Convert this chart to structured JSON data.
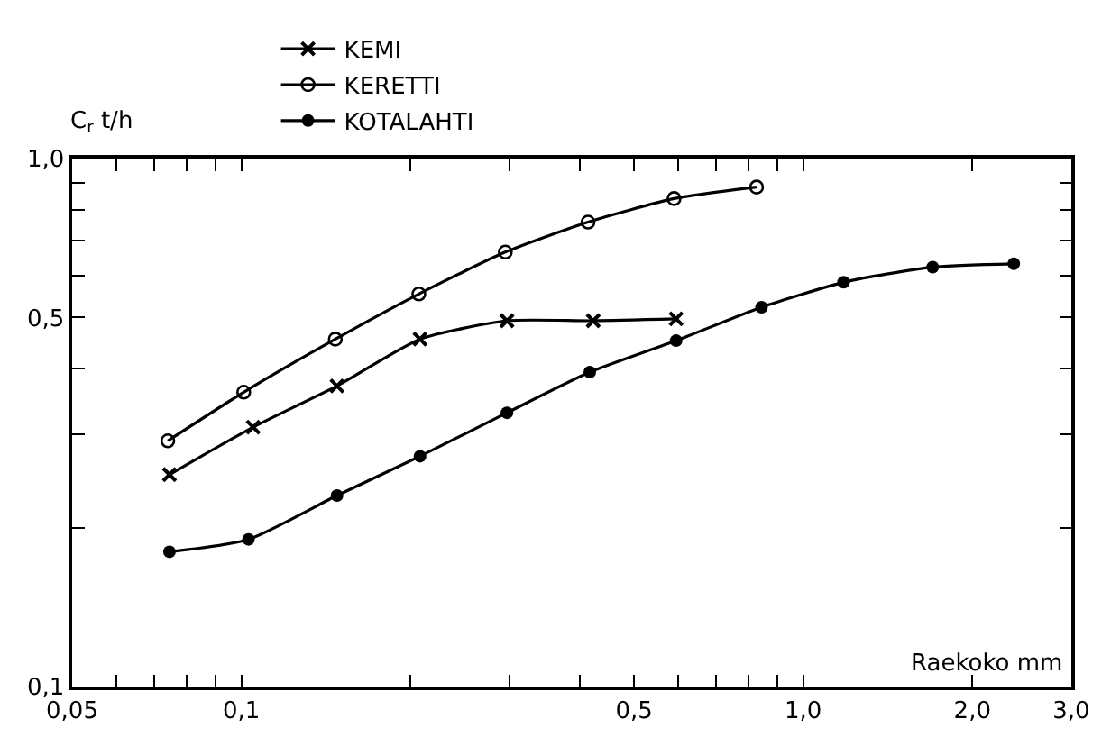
{
  "chart_data": {
    "type": "line",
    "xlabel": "Raekoko mm",
    "ylabel": "C$_{r}$ t/h",
    "log": "xy",
    "legend": "top",
    "xlim": [
      0.05,
      3.0
    ],
    "ylim": [
      0.1,
      1.0
    ],
    "xticks": [
      {
        "value": 0.05,
        "label": "0,05"
      },
      {
        "value": 0.06,
        "label": null
      },
      {
        "value": 0.07,
        "label": null
      },
      {
        "value": 0.08,
        "label": null
      },
      {
        "value": 0.09,
        "label": null
      },
      {
        "value": 0.1,
        "label": "0,1"
      },
      {
        "value": 0.2,
        "label": null
      },
      {
        "value": 0.3,
        "label": null
      },
      {
        "value": 0.4,
        "label": null
      },
      {
        "value": 0.5,
        "label": "0,5"
      },
      {
        "value": 0.6,
        "label": null
      },
      {
        "value": 0.7,
        "label": null
      },
      {
        "value": 0.8,
        "label": null
      },
      {
        "value": 0.9,
        "label": null
      },
      {
        "value": 1.0,
        "label": "1,0"
      },
      {
        "value": 2.0,
        "label": "2,0"
      },
      {
        "value": 3.0,
        "label": "3,0"
      }
    ],
    "yticks": [
      {
        "value": 0.1,
        "label": "0,1"
      },
      {
        "value": 0.2,
        "label": null
      },
      {
        "value": 0.3,
        "label": null
      },
      {
        "value": 0.4,
        "label": null
      },
      {
        "value": 0.5,
        "label": "0,5"
      },
      {
        "value": 0.6,
        "label": null
      },
      {
        "value": 0.7,
        "label": null
      },
      {
        "value": 0.8,
        "label": null
      },
      {
        "value": 0.9,
        "label": null
      },
      {
        "value": 1.0,
        "label": "1,0"
      }
    ],
    "series": [
      {
        "name": "KEMI",
        "color": "#000000",
        "marker": "cross",
        "x": [
          0.0745,
          0.105,
          0.148,
          0.208,
          0.297,
          0.423,
          0.594
        ],
        "values": [
          0.252,
          0.31,
          0.371,
          0.455,
          0.493,
          0.493,
          0.497
        ]
      },
      {
        "name": "KERETTI",
        "color": "#000000",
        "marker": "circle-open",
        "x": [
          0.074,
          0.101,
          0.147,
          0.207,
          0.295,
          0.414,
          0.589,
          0.826
        ],
        "values": [
          0.292,
          0.361,
          0.455,
          0.554,
          0.665,
          0.758,
          0.84,
          0.883
        ]
      },
      {
        "name": "KOTALAHTI",
        "color": "#000000",
        "marker": "circle",
        "x": [
          0.0745,
          0.103,
          0.148,
          0.208,
          0.297,
          0.417,
          0.594,
          0.843,
          1.18,
          1.7,
          2.37
        ],
        "values": [
          0.18,
          0.19,
          0.23,
          0.273,
          0.33,
          0.394,
          0.452,
          0.523,
          0.583,
          0.623,
          0.632
        ]
      }
    ]
  }
}
